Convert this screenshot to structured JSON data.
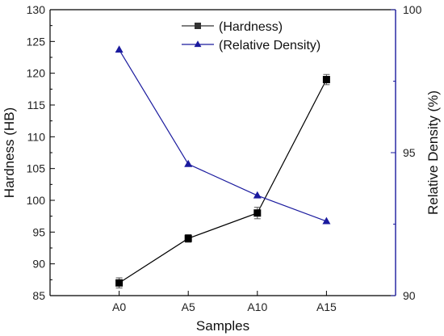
{
  "chart_data": {
    "type": "line",
    "categories": [
      "A0",
      "A5",
      "A10",
      "A15"
    ],
    "xlabel": "Samples",
    "ylabel": "Hardness  (HB)",
    "y2label": "Relative Density (%)",
    "ylim": [
      85,
      130
    ],
    "y2lim": [
      90,
      100
    ],
    "yticks": [
      85,
      90,
      95,
      100,
      105,
      110,
      115,
      120,
      125,
      130
    ],
    "y2ticks": [
      90,
      95,
      100
    ],
    "grid": false,
    "legend_position": "top-center",
    "series": [
      {
        "name": "(Hardness)",
        "axis": "left",
        "marker": "square",
        "color": "#000000",
        "values": [
          87,
          94,
          98,
          119
        ],
        "errors": [
          0.8,
          0.6,
          0.9,
          0.8
        ]
      },
      {
        "name": "(Relative Density)",
        "axis": "right",
        "marker": "triangle",
        "color": "#1a1a9e",
        "values": [
          98.6,
          94.6,
          93.5,
          92.6
        ]
      }
    ],
    "right_axis_color": "#1a1a9e"
  }
}
